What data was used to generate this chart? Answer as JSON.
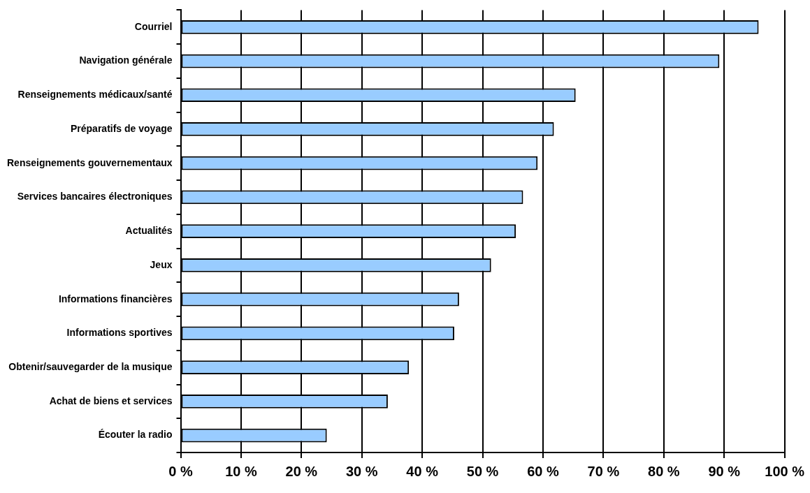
{
  "chart_data": {
    "type": "bar",
    "orientation": "horizontal",
    "categories": [
      "Courriel",
      "Navigation générale",
      "Renseignements médicaux/santé",
      "Préparatifs de voyage",
      "Renseignements gouvernementaux",
      "Services bancaires électroniques",
      "Actualités",
      "Jeux",
      "Informations financières",
      "Informations sportives",
      "Obtenir/sauvegarder de la musique",
      "Achat de biens et services",
      "Écouter la radio"
    ],
    "values": [
      95.7,
      89.2,
      65.4,
      61.8,
      59.1,
      56.7,
      55.5,
      51.4,
      46.1,
      45.3,
      37.8,
      34.3,
      24.2
    ],
    "color": "#99ccff",
    "xlim": [
      0,
      100
    ],
    "xticks": [
      {
        "value": 0,
        "label": "0 %"
      },
      {
        "value": 10,
        "label": "10 %"
      },
      {
        "value": 20,
        "label": "20 %"
      },
      {
        "value": 30,
        "label": "30 %"
      },
      {
        "value": 40,
        "label": "40 %"
      },
      {
        "value": 50,
        "label": "50 %"
      },
      {
        "value": 60,
        "label": "60 %"
      },
      {
        "value": 70,
        "label": "70 %"
      },
      {
        "value": 80,
        "label": "80 %"
      },
      {
        "value": 90,
        "label": "90 %"
      },
      {
        "value": 100,
        "label": "100 %"
      }
    ],
    "grid": "x",
    "legend": false
  }
}
